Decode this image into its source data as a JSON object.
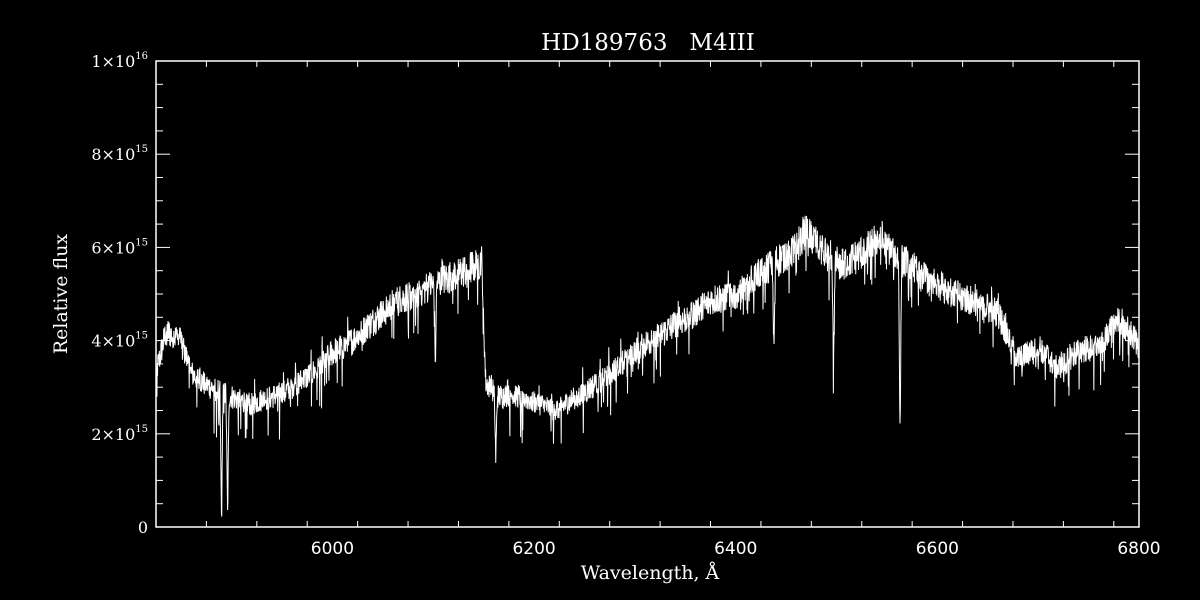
{
  "colors": {
    "background": "#000000",
    "foreground": "#ffffff"
  },
  "chart_data": {
    "type": "line",
    "title": "HD189763   M4III",
    "xlabel": "Wavelength, Å",
    "ylabel": "Relative flux",
    "xlim": [
      5825,
      6800
    ],
    "ylim": [
      0,
      1e+16
    ],
    "x_ticks": [
      {
        "value": 6000,
        "label": "6000"
      },
      {
        "value": 6200,
        "label": "6200"
      },
      {
        "value": 6400,
        "label": "6400"
      },
      {
        "value": 6600,
        "label": "6600"
      },
      {
        "value": 6800,
        "label": "6800"
      }
    ],
    "y_ticks": [
      {
        "value": 0,
        "mantissa": "0",
        "exp": ""
      },
      {
        "value": 2000000000000000.0,
        "mantissa": "2×10",
        "exp": "15"
      },
      {
        "value": 4000000000000000.0,
        "mantissa": "4×10",
        "exp": "15"
      },
      {
        "value": 6000000000000000.0,
        "mantissa": "6×10",
        "exp": "15"
      },
      {
        "value": 8000000000000000.0,
        "mantissa": "8×10",
        "exp": "15"
      },
      {
        "value": 1e+16,
        "mantissa": "1×10",
        "exp": "16"
      }
    ],
    "x_minor_step": 50,
    "y_minor_step": 500000000000000.0,
    "grid": false,
    "series": [
      {
        "continuum_x": [
          5825,
          5835,
          5850,
          5860,
          5875,
          5890,
          5905,
          5920,
          5940,
          5960,
          5980,
          6000,
          6020,
          6040,
          6060,
          6080,
          6100,
          6120,
          6140,
          6148,
          6152,
          6165,
          6180,
          6200,
          6220,
          6240,
          6260,
          6280,
          6300,
          6320,
          6340,
          6360,
          6380,
          6400,
          6420,
          6440,
          6460,
          6470,
          6480,
          6500,
          6520,
          6540,
          6560,
          6580,
          6600,
          6620,
          6640,
          6660,
          6680,
          6700,
          6720,
          6740,
          6760,
          6780,
          6800
        ],
        "continuum_y": [
          3300000000000000.0,
          4200000000000000.0,
          4000000000000000.0,
          3300000000000000.0,
          3050000000000000.0,
          2900000000000000.0,
          2750000000000000.0,
          2650000000000000.0,
          2800000000000000.0,
          3000000000000000.0,
          3300000000000000.0,
          3750000000000000.0,
          4000000000000000.0,
          4400000000000000.0,
          4800000000000000.0,
          5000000000000000.0,
          5200000000000000.0,
          5400000000000000.0,
          5600000000000000.0,
          5700000000000000.0,
          3100000000000000.0,
          2800000000000000.0,
          2850000000000000.0,
          2700000000000000.0,
          2500000000000000.0,
          2750000000000000.0,
          3050000000000000.0,
          3400000000000000.0,
          3800000000000000.0,
          4050000000000000.0,
          4350000000000000.0,
          4600000000000000.0,
          4900000000000000.0,
          5000000000000000.0,
          5400000000000000.0,
          5700000000000000.0,
          6000000000000000.0,
          6400000000000000.0,
          6100000000000000.0,
          5600000000000000.0,
          5800000000000000.0,
          6200000000000000.0,
          5800000000000000.0,
          5500000000000000.0,
          5200000000000000.0,
          5000000000000000.0,
          4800000000000000.0,
          4600000000000000.0,
          3600000000000000.0,
          3900000000000000.0,
          3400000000000000.0,
          3800000000000000.0,
          3900000000000000.0,
          4500000000000000.0,
          3900000000000000.0
        ],
        "noise_amplitude": 800000000000000.0,
        "absorption_lines": [
          {
            "x": 5890,
            "depth": 2800000000000000.0
          },
          {
            "x": 5896,
            "depth": 2600000000000000.0
          },
          {
            "x": 6563,
            "depth": 3700000000000000.0
          },
          {
            "x": 6497,
            "depth": 2300000000000000.0
          },
          {
            "x": 6438,
            "depth": 1800000000000000.0
          },
          {
            "x": 6162,
            "depth": 1400000000000000.0
          },
          {
            "x": 6102,
            "depth": 1500000000000000.0
          }
        ]
      }
    ]
  }
}
